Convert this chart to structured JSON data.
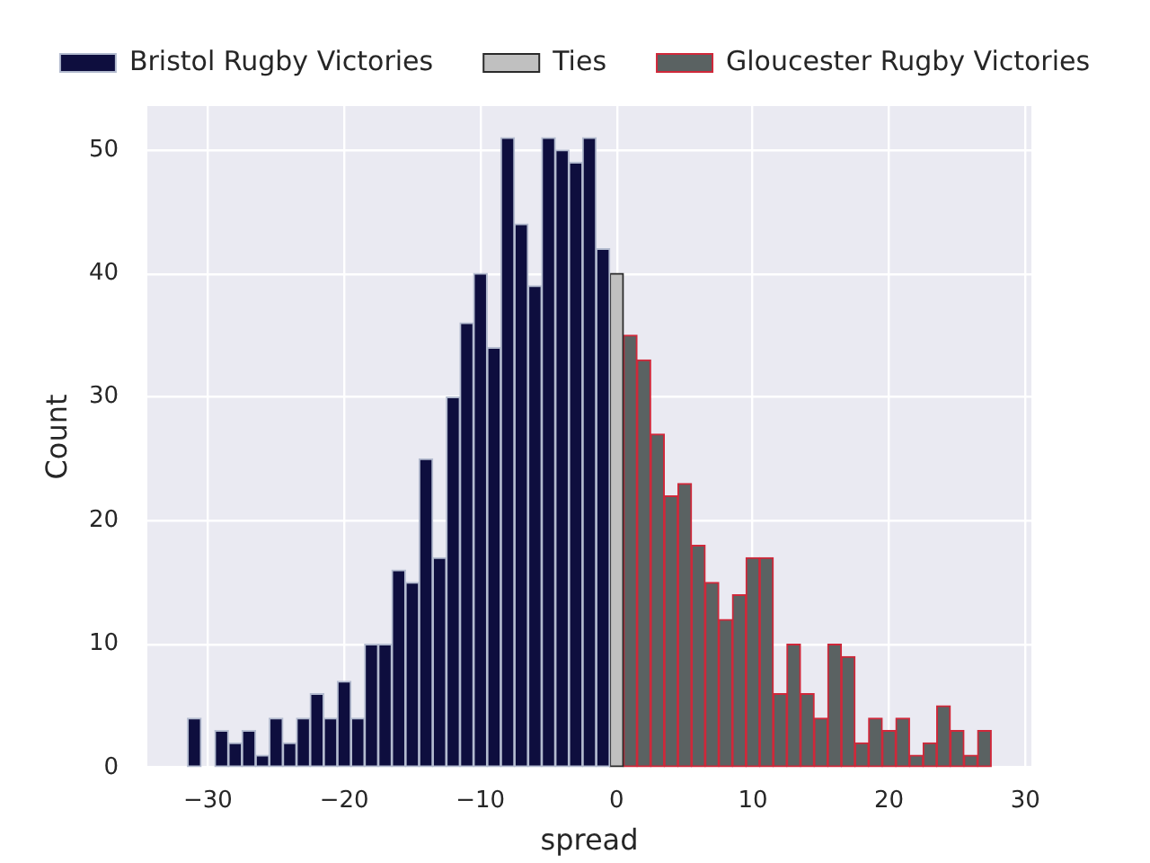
{
  "chart_data": {
    "type": "histogram",
    "xlabel": "spread",
    "ylabel": "Count",
    "bins": [
      -31.5,
      -30.5,
      -29.5,
      -28.5,
      -27.5,
      -26.5,
      -25.5,
      -24.5,
      -23.5,
      -22.5,
      -21.5,
      -20.5,
      -19.5,
      -18.5,
      -17.5,
      -16.5,
      -15.5,
      -14.5,
      -13.5,
      -12.5,
      -11.5,
      -10.5,
      -9.5,
      -8.5,
      -7.5,
      -6.5,
      -5.5,
      -4.5,
      -3.5,
      -2.5,
      -1.5,
      -0.5,
      0.5,
      1.5,
      2.5,
      3.5,
      4.5,
      5.5,
      6.5,
      7.5,
      8.5,
      9.5,
      10.5,
      11.5,
      12.5,
      13.5,
      14.5,
      15.5,
      16.5,
      17.5,
      18.5,
      19.5,
      20.5,
      21.5,
      22.5,
      23.5,
      24.5,
      25.5,
      26.5,
      27.5
    ],
    "series": [
      {
        "name": "Bristol Rugby Victories",
        "color": "#0e0e3e",
        "values": [
          4,
          0,
          3,
          2,
          3,
          1,
          4,
          2,
          4,
          6,
          4,
          7,
          4,
          10,
          10,
          16,
          15,
          25,
          17,
          30,
          36,
          40,
          34,
          51,
          44,
          39,
          51,
          50,
          49,
          51,
          42,
          null,
          null,
          null,
          null,
          null,
          null,
          null,
          null,
          null,
          null,
          null,
          null,
          null,
          null,
          null,
          null,
          null,
          null,
          null,
          null,
          null,
          null,
          null,
          null,
          null,
          null,
          null,
          null
        ]
      },
      {
        "name": "Ties",
        "color": "#c0c0c0",
        "values": [
          null,
          null,
          null,
          null,
          null,
          null,
          null,
          null,
          null,
          null,
          null,
          null,
          null,
          null,
          null,
          null,
          null,
          null,
          null,
          null,
          null,
          null,
          null,
          null,
          null,
          null,
          null,
          null,
          null,
          null,
          null,
          40,
          null,
          null,
          null,
          null,
          null,
          null,
          null,
          null,
          null,
          null,
          null,
          null,
          null,
          null,
          null,
          null,
          null,
          null,
          null,
          null,
          null,
          null,
          null,
          null,
          null,
          null,
          null
        ]
      },
      {
        "name": "Gloucester Rugby Victories",
        "color": "#5a6262",
        "values": [
          null,
          null,
          null,
          null,
          null,
          null,
          null,
          null,
          null,
          null,
          null,
          null,
          null,
          null,
          null,
          null,
          null,
          null,
          null,
          null,
          null,
          null,
          null,
          null,
          null,
          null,
          null,
          null,
          null,
          null,
          null,
          null,
          35,
          33,
          27,
          22,
          23,
          18,
          15,
          12,
          14,
          17,
          17,
          6,
          10,
          6,
          4,
          10,
          9,
          2,
          4,
          3,
          4,
          1,
          2,
          5,
          3,
          1,
          3
        ]
      }
    ],
    "xlim": [
      -34.45,
      30.45
    ],
    "xticks": [
      {
        "value": -30,
        "label": "−30"
      },
      {
        "value": -20,
        "label": "−20"
      },
      {
        "value": -10,
        "label": "−10"
      },
      0,
      10,
      20,
      30
    ],
    "ylim": [
      0,
      53.55
    ],
    "yticks": [
      0,
      10,
      20,
      30,
      40,
      50
    ],
    "grid": true,
    "legend": "top"
  }
}
